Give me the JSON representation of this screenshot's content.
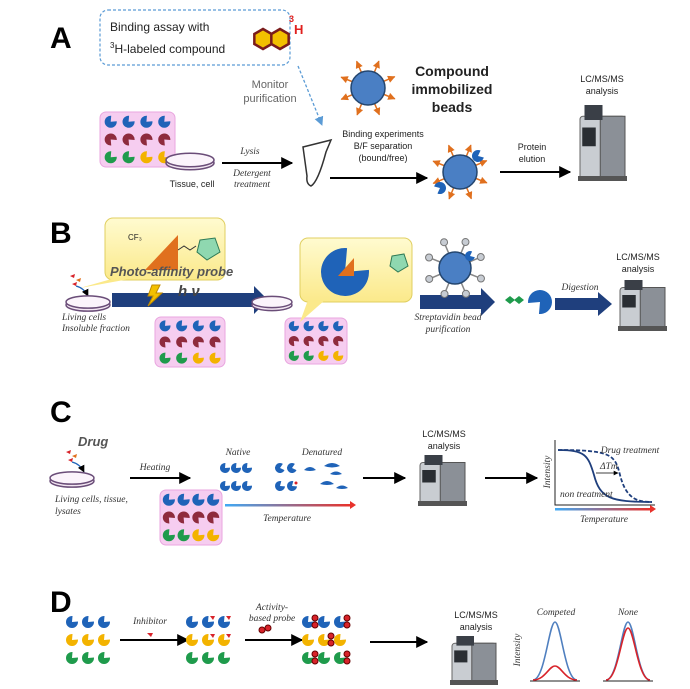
{
  "panel_a": {
    "label": "A",
    "assay_box": {
      "line1": "Binding assay with",
      "sup": "3",
      "line2": "H-labeled compound",
      "icon_sup": "3",
      "icon_atom": "H"
    },
    "monitor": [
      "Monitor",
      "purification"
    ],
    "beads": [
      "Compound",
      "immobilized",
      "beads"
    ],
    "lcms": [
      "LC/MS/MS",
      "analysis"
    ],
    "tissue": "Tissue, cell",
    "lysis": "Lysis",
    "detergent": [
      "Detergent",
      "treatment"
    ],
    "binding": [
      "Binding experiments",
      "B/F separation",
      "(bound/free)"
    ],
    "elution": [
      "Protein",
      "elution"
    ]
  },
  "panel_b": {
    "label": "B",
    "probe_group": "CF₃",
    "probe": "Photo-affinity probe",
    "light": "h ν",
    "cells": [
      "Living cells",
      "Insoluble fraction"
    ],
    "streptavidin": [
      "Streptavidin bead",
      "purification"
    ],
    "digestion": "Digestion",
    "lcms": [
      "LC/MS/MS",
      "analysis"
    ]
  },
  "panel_c": {
    "label": "C",
    "drug": "Drug",
    "heating": "Heating",
    "native": "Native",
    "denatured": "Denatured",
    "temperature": "Temperature",
    "cells": [
      "Living cells, tissue,",
      "lysates"
    ],
    "lcms": [
      "LC/MS/MS",
      "analysis"
    ],
    "plot": {
      "y_label": "Intensity",
      "x_label": "Temperature",
      "drug": "Drug treatment",
      "delta": "ΔTm",
      "non": "non treatment"
    }
  },
  "panel_d": {
    "label": "D",
    "inhibitor": "Inhibitor",
    "probe": [
      "Activity-",
      "based probe"
    ],
    "lcms": [
      "LC/MS/MS",
      "analysis"
    ],
    "y_label": "Intensity",
    "competed": "Competed",
    "none": "None"
  }
}
